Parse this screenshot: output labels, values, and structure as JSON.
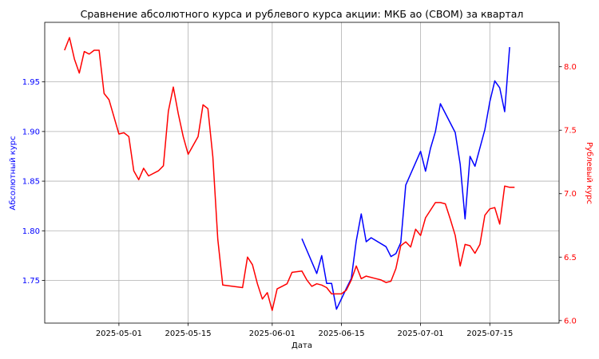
{
  "chart_data": {
    "type": "line",
    "title": "Сравнение абсолютного курса и рублевого курса акции: МКБ ао (CBOM) за квартал",
    "xlabel": "Дата",
    "ylabel_left": "Абсолютный курс",
    "ylabel_right": "Рублевый курс",
    "x_ticks": [
      "2025-05-01",
      "2025-05-15",
      "2025-06-01",
      "2025-06-15",
      "2025-07-01",
      "2025-07-15"
    ],
    "y_left_ticks": [
      1.75,
      1.8,
      1.85,
      1.9,
      1.95
    ],
    "y_right_ticks": [
      6.0,
      6.5,
      7.0,
      7.5,
      8.0
    ],
    "x_range": [
      "2025-04-16",
      "2025-07-29"
    ],
    "ylim_left": [
      1.707,
      2.01
    ],
    "ylim_right": [
      5.98,
      8.35
    ],
    "grid": true,
    "colors": {
      "left": "#0000ff",
      "right": "#ff0000"
    },
    "series": [
      {
        "axis": "left",
        "color": "#0000ff",
        "points": [
          [
            "2025-06-07",
            1.792
          ],
          [
            "2025-06-10",
            1.757
          ],
          [
            "2025-06-11",
            1.775
          ],
          [
            "2025-06-12",
            1.747
          ],
          [
            "2025-06-13",
            1.747
          ],
          [
            "2025-06-14",
            1.721
          ],
          [
            "2025-06-16",
            1.742
          ],
          [
            "2025-06-17",
            1.752
          ],
          [
            "2025-06-18",
            1.79
          ],
          [
            "2025-06-19",
            1.817
          ],
          [
            "2025-06-20",
            1.789
          ],
          [
            "2025-06-21",
            1.793
          ],
          [
            "2025-06-24",
            1.784
          ],
          [
            "2025-06-25",
            1.774
          ],
          [
            "2025-06-26",
            1.777
          ],
          [
            "2025-06-27",
            1.788
          ],
          [
            "2025-06-28",
            1.846
          ],
          [
            "2025-07-01",
            1.88
          ],
          [
            "2025-07-02",
            1.86
          ],
          [
            "2025-07-03",
            1.883
          ],
          [
            "2025-07-04",
            1.9
          ],
          [
            "2025-07-05",
            1.928
          ],
          [
            "2025-07-08",
            1.899
          ],
          [
            "2025-07-09",
            1.867
          ],
          [
            "2025-07-10",
            1.812
          ],
          [
            "2025-07-11",
            1.875
          ],
          [
            "2025-07-12",
            1.865
          ],
          [
            "2025-07-14",
            1.902
          ],
          [
            "2025-07-15",
            1.93
          ],
          [
            "2025-07-16",
            1.951
          ],
          [
            "2025-07-17",
            1.944
          ],
          [
            "2025-07-18",
            1.92
          ],
          [
            "2025-07-19",
            1.985
          ]
        ]
      },
      {
        "axis": "right",
        "color": "#ff0000",
        "points": [
          [
            "2025-04-20",
            8.13
          ],
          [
            "2025-04-21",
            8.23
          ],
          [
            "2025-04-22",
            8.06
          ],
          [
            "2025-04-23",
            7.95
          ],
          [
            "2025-04-24",
            8.12
          ],
          [
            "2025-04-25",
            8.1
          ],
          [
            "2025-04-26",
            8.13
          ],
          [
            "2025-04-27",
            8.13
          ],
          [
            "2025-04-28",
            7.79
          ],
          [
            "2025-04-29",
            7.74
          ],
          [
            "2025-05-01",
            7.47
          ],
          [
            "2025-05-02",
            7.48
          ],
          [
            "2025-05-03",
            7.45
          ],
          [
            "2025-05-04",
            7.18
          ],
          [
            "2025-05-05",
            7.11
          ],
          [
            "2025-05-06",
            7.2
          ],
          [
            "2025-05-07",
            7.14
          ],
          [
            "2025-05-09",
            7.18
          ],
          [
            "2025-05-10",
            7.22
          ],
          [
            "2025-05-11",
            7.65
          ],
          [
            "2025-05-12",
            7.84
          ],
          [
            "2025-05-13",
            7.63
          ],
          [
            "2025-05-14",
            7.45
          ],
          [
            "2025-05-15",
            7.31
          ],
          [
            "2025-05-17",
            7.45
          ],
          [
            "2025-05-18",
            7.7
          ],
          [
            "2025-05-19",
            7.67
          ],
          [
            "2025-05-20",
            7.29
          ],
          [
            "2025-05-21",
            6.64
          ],
          [
            "2025-05-22",
            6.28
          ],
          [
            "2025-05-26",
            6.26
          ],
          [
            "2025-05-27",
            6.5
          ],
          [
            "2025-05-28",
            6.44
          ],
          [
            "2025-05-29",
            6.29
          ],
          [
            "2025-05-30",
            6.17
          ],
          [
            "2025-05-31",
            6.22
          ],
          [
            "2025-06-01",
            6.08
          ],
          [
            "2025-06-02",
            6.25
          ],
          [
            "2025-06-03",
            6.27
          ],
          [
            "2025-06-04",
            6.29
          ],
          [
            "2025-06-05",
            6.38
          ],
          [
            "2025-06-07",
            6.39
          ],
          [
            "2025-06-08",
            6.32
          ],
          [
            "2025-06-09",
            6.27
          ],
          [
            "2025-06-10",
            6.29
          ],
          [
            "2025-06-11",
            6.28
          ],
          [
            "2025-06-12",
            6.26
          ],
          [
            "2025-06-13",
            6.21
          ],
          [
            "2025-06-15",
            6.21
          ],
          [
            "2025-06-16",
            6.24
          ],
          [
            "2025-06-17",
            6.32
          ],
          [
            "2025-06-18",
            6.43
          ],
          [
            "2025-06-19",
            6.33
          ],
          [
            "2025-06-20",
            6.35
          ],
          [
            "2025-06-22",
            6.33
          ],
          [
            "2025-06-23",
            6.32
          ],
          [
            "2025-06-24",
            6.3
          ],
          [
            "2025-06-25",
            6.31
          ],
          [
            "2025-06-26",
            6.41
          ],
          [
            "2025-06-27",
            6.59
          ],
          [
            "2025-06-28",
            6.62
          ],
          [
            "2025-06-29",
            6.58
          ],
          [
            "2025-06-30",
            6.72
          ],
          [
            "2025-07-01",
            6.67
          ],
          [
            "2025-07-02",
            6.81
          ],
          [
            "2025-07-04",
            6.93
          ],
          [
            "2025-07-05",
            6.93
          ],
          [
            "2025-07-06",
            6.92
          ],
          [
            "2025-07-07",
            6.8
          ],
          [
            "2025-07-08",
            6.67
          ],
          [
            "2025-07-09",
            6.43
          ],
          [
            "2025-07-10",
            6.6
          ],
          [
            "2025-07-11",
            6.59
          ],
          [
            "2025-07-12",
            6.53
          ],
          [
            "2025-07-13",
            6.6
          ],
          [
            "2025-07-14",
            6.83
          ],
          [
            "2025-07-15",
            6.88
          ],
          [
            "2025-07-16",
            6.89
          ],
          [
            "2025-07-17",
            6.76
          ],
          [
            "2025-07-18",
            7.06
          ],
          [
            "2025-07-19",
            7.05
          ],
          [
            "2025-07-20",
            7.05
          ]
        ]
      }
    ]
  }
}
